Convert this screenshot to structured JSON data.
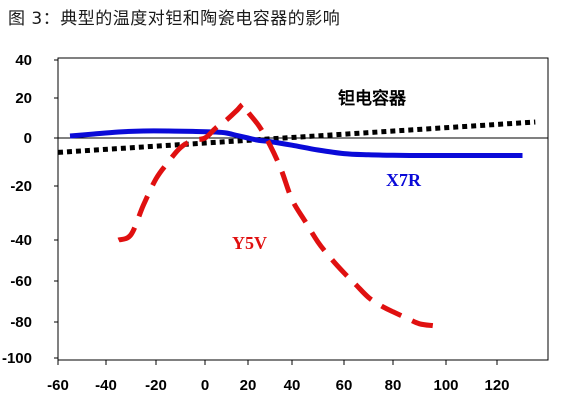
{
  "chart_data": {
    "type": "line",
    "title": "图 3：典型的温度对钽和陶瓷电容器的影响",
    "xlabel": "",
    "ylabel": "",
    "xlim": [
      -60,
      135
    ],
    "ylim": [
      -100,
      40
    ],
    "x_ticks": [
      "-60",
      "-40",
      "-20",
      "0",
      "20",
      "40",
      "60",
      "80",
      "100",
      "120"
    ],
    "y_ticks": [
      "40",
      "20",
      "0",
      "-20",
      "-40",
      "-60",
      "-80",
      "-100"
    ],
    "grid": false,
    "series": [
      {
        "name": "钽电容器",
        "color": "#000000",
        "style": "dotted",
        "label_color": "#000000",
        "x": [
          -60,
          135
        ],
        "y": [
          -6,
          8
        ]
      },
      {
        "name": "X7R",
        "color": "#0a0ad8",
        "style": "solid",
        "label_color": "#0a0ad8",
        "x": [
          -55,
          -45,
          -35,
          -25,
          -15,
          -5,
          5,
          10,
          15,
          20,
          25,
          30,
          40,
          50,
          60,
          70,
          80,
          90,
          100,
          110,
          120,
          130
        ],
        "y": [
          1,
          2,
          3,
          3.5,
          3.5,
          3.3,
          3,
          2.5,
          1.2,
          0,
          -1,
          -1.5,
          -3,
          -5,
          -6.5,
          -7,
          -7.2,
          -7.3,
          -7.3,
          -7.3,
          -7.3,
          -7.3
        ]
      },
      {
        "name": "Y5V",
        "color": "#e01010",
        "style": "dashed",
        "label_color": "#e01010",
        "x": [
          -35,
          -30,
          -25,
          -20,
          -15,
          -10,
          -5,
          0,
          5,
          10,
          15,
          18,
          20,
          25,
          30,
          35,
          40,
          45,
          50,
          55,
          60,
          65,
          70,
          75,
          80,
          85,
          90,
          95
        ],
        "y": [
          -40,
          -38,
          -27,
          -17,
          -10,
          -4,
          -1,
          0,
          5,
          9,
          14,
          17,
          13,
          6,
          -3,
          -13,
          -25,
          -33,
          -41,
          -49,
          -56,
          -62,
          -68,
          -72,
          -75,
          -78,
          -81,
          -82
        ]
      }
    ],
    "annotations": [
      {
        "text": "钽电容器",
        "series": 0
      },
      {
        "text": "X7R",
        "series": 1
      },
      {
        "text": "Y5V",
        "series": 2
      }
    ]
  }
}
